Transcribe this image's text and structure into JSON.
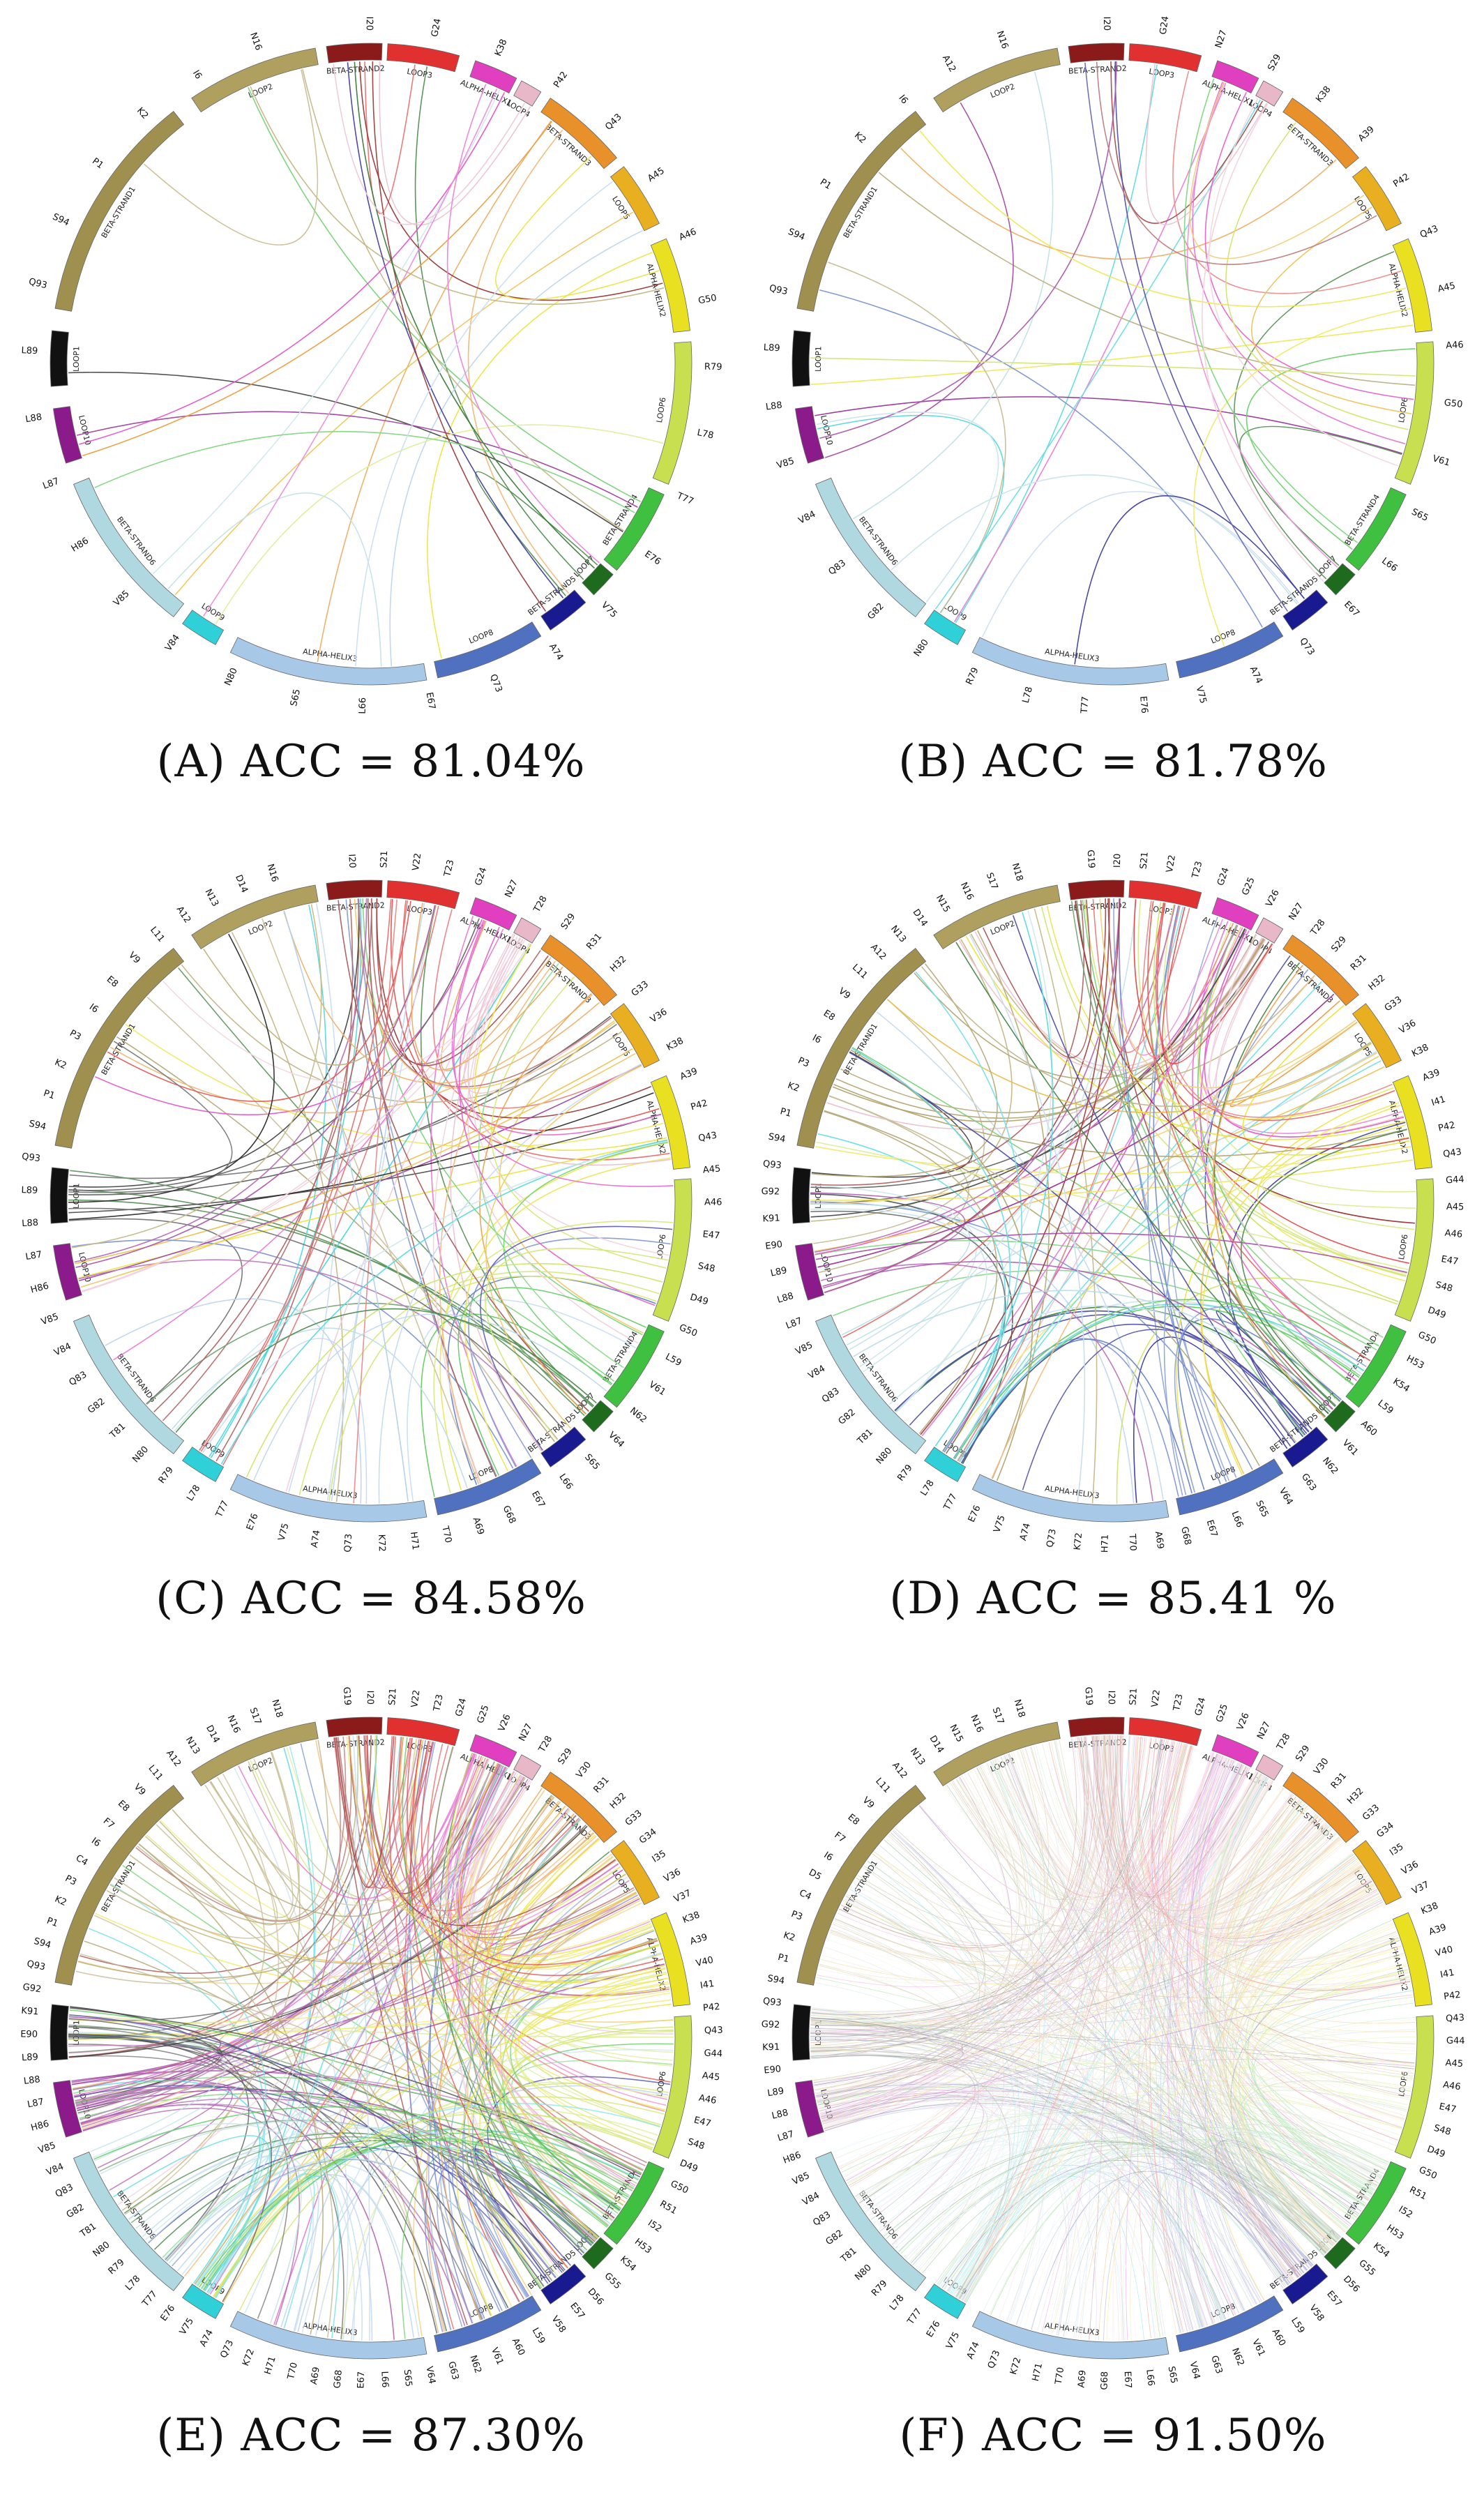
{
  "panels": [
    {
      "caption": "(A) ACC = 81.04%",
      "density": 30
    },
    {
      "caption": "(B) ACC = 81.78%",
      "density": 38
    },
    {
      "caption": "(C) ACC = 84.58%",
      "density": 110
    },
    {
      "caption": "(D) ACC = 85.41 %",
      "density": 150
    },
    {
      "caption": "(E) ACC = 87.30%",
      "density": 300
    },
    {
      "caption": "(F) ACC = 91.50%",
      "density": 700
    }
  ],
  "segments": [
    {
      "name": "BETA-STRAND2",
      "color": "#8b1a1a"
    },
    {
      "name": "LOOP3",
      "color": "#e03030"
    },
    {
      "name": "ALPHA-HELIX1",
      "color": "#e040c0"
    },
    {
      "name": "LOOP4",
      "color": "#e8b8c8"
    },
    {
      "name": "BETA-STRAND3",
      "color": "#e8902a"
    },
    {
      "name": "LOOP5",
      "color": "#e8b020"
    },
    {
      "name": "ALPHA-HELIX2",
      "color": "#e8e020"
    },
    {
      "name": "LOOP6",
      "color": "#c8e050"
    },
    {
      "name": "BETA-STRAND4",
      "color": "#40c040"
    },
    {
      "name": "LOOP7",
      "color": "#1e6b1e"
    },
    {
      "name": "BETA-STRAND5",
      "color": "#1a1a90"
    },
    {
      "name": "LOOP8",
      "color": "#5070c0"
    },
    {
      "name": "ALPHA-HELIX3",
      "color": "#a8c8e8"
    },
    {
      "name": "LOOP9",
      "color": "#30d0d8"
    },
    {
      "name": "BETA-STRAND6",
      "color": "#b0d8e0"
    },
    {
      "name": "LOOP10",
      "color": "#8b1a8b"
    },
    {
      "name": "LOOP1",
      "color": "#111111"
    },
    {
      "name": "BETA-STRAND1",
      "color": "#a09050"
    },
    {
      "name": "LOOP2",
      "color": "#b0a060"
    }
  ],
  "residue_labels": {
    "A": [
      "I20",
      "G24",
      "K38",
      "P42",
      "Q43",
      "A45",
      "A46",
      "G50",
      "R79",
      "L78",
      "T77",
      "E76",
      "V75",
      "A74",
      "Q73",
      "E67",
      "L66",
      "S65",
      "N80",
      "V84",
      "V85",
      "H86",
      "L87",
      "L88",
      "L89",
      "Q93",
      "S94",
      "P1",
      "K2",
      "I6",
      "N16"
    ],
    "B": [
      "I20",
      "G24",
      "N27",
      "S29",
      "K38",
      "A39",
      "P42",
      "Q43",
      "A45",
      "A46",
      "G50",
      "V61",
      "S65",
      "L66",
      "E67",
      "Q73",
      "A74",
      "V75",
      "E76",
      "T77",
      "L78",
      "R79",
      "N80",
      "G82",
      "Q83",
      "V84",
      "V85",
      "L88",
      "L89",
      "Q93",
      "S94",
      "P1",
      "K2",
      "I6",
      "A12",
      "N16"
    ],
    "C": [
      "I20",
      "S21",
      "V22",
      "T23",
      "G24",
      "N27",
      "T28",
      "S29",
      "R31",
      "H32",
      "G33",
      "V36",
      "K38",
      "A39",
      "P42",
      "Q43",
      "A45",
      "A46",
      "E47",
      "S48",
      "D49",
      "G50",
      "L59",
      "V61",
      "N62",
      "V64",
      "S65",
      "L66",
      "E67",
      "G68",
      "A69",
      "T70",
      "H71",
      "K72",
      "Q73",
      "A74",
      "V75",
      "E76",
      "T77",
      "L78",
      "R79",
      "N80",
      "T81",
      "G82",
      "Q83",
      "V84",
      "V85",
      "H86",
      "L87",
      "L88",
      "L89",
      "Q93",
      "S94",
      "P1",
      "K2",
      "P3",
      "I6",
      "E8",
      "V9",
      "L11",
      "A12",
      "N13",
      "D14",
      "N16"
    ],
    "D": [
      "G19",
      "I20",
      "S21",
      "V22",
      "T23",
      "G24",
      "G25",
      "V26",
      "N27",
      "T28",
      "S29",
      "R31",
      "H32",
      "G33",
      "V36",
      "K38",
      "A39",
      "I41",
      "P42",
      "Q43",
      "G44",
      "A45",
      "A46",
      "E47",
      "S48",
      "D49",
      "G50",
      "H53",
      "K54",
      "L59",
      "A60",
      "V61",
      "N62",
      "G63",
      "V64",
      "S65",
      "L66",
      "E67",
      "G68",
      "A69",
      "T70",
      "H71",
      "K72",
      "Q73",
      "A74",
      "V75",
      "E76",
      "T77",
      "L78",
      "R79",
      "N80",
      "T81",
      "G82",
      "Q83",
      "V84",
      "V85",
      "L87",
      "L88",
      "L89",
      "E90",
      "K91",
      "G92",
      "Q93",
      "S94",
      "P1",
      "K2",
      "P3",
      "I6",
      "E8",
      "V9",
      "L11",
      "A12",
      "N13",
      "D14",
      "N15",
      "N16",
      "S17",
      "N18"
    ],
    "E": [
      "G19",
      "I20",
      "S21",
      "V22",
      "T23",
      "G24",
      "G25",
      "V26",
      "N27",
      "T28",
      "S29",
      "V30",
      "R31",
      "H32",
      "G33",
      "G34",
      "I35",
      "V36",
      "V37",
      "K38",
      "A39",
      "V40",
      "I41",
      "P42",
      "Q43",
      "G44",
      "A45",
      "A46",
      "E47",
      "S48",
      "D49",
      "G50",
      "R51",
      "I52",
      "H53",
      "K54",
      "G55",
      "D56",
      "E57",
      "V58",
      "L59",
      "A60",
      "V61",
      "N62",
      "G63",
      "V64",
      "S65",
      "L66",
      "E67",
      "G68",
      "A69",
      "T70",
      "H71",
      "K72",
      "Q73",
      "A74",
      "V75",
      "E76",
      "T77",
      "L78",
      "R79",
      "N80",
      "T81",
      "G82",
      "Q83",
      "V84",
      "V85",
      "H86",
      "L87",
      "L88",
      "L89",
      "E90",
      "K91",
      "G92",
      "Q93",
      "S94",
      "P1",
      "K2",
      "P3",
      "C4",
      "I6",
      "F7",
      "E8",
      "V9",
      "L11",
      "A12",
      "N13",
      "D14",
      "N16",
      "S17",
      "N18"
    ],
    "F": [
      "G19",
      "I20",
      "S21",
      "V22",
      "T23",
      "G24",
      "G25",
      "V26",
      "N27",
      "T28",
      "S29",
      "V30",
      "R31",
      "H32",
      "G33",
      "G34",
      "I35",
      "V36",
      "V37",
      "K38",
      "A39",
      "V40",
      "I41",
      "P42",
      "Q43",
      "G44",
      "A45",
      "A46",
      "E47",
      "S48",
      "D49",
      "G50",
      "R51",
      "I52",
      "H53",
      "K54",
      "G55",
      "D56",
      "E57",
      "V58",
      "L59",
      "A60",
      "V61",
      "N62",
      "G63",
      "V64",
      "S65",
      "L66",
      "E67",
      "G68",
      "A69",
      "T70",
      "H71",
      "K72",
      "Q73",
      "A74",
      "V75",
      "E76",
      "T77",
      "L78",
      "R79",
      "N80",
      "T81",
      "G82",
      "Q83",
      "V84",
      "V85",
      "H86",
      "L87",
      "L88",
      "L89",
      "E90",
      "K91",
      "G92",
      "Q93",
      "S94",
      "P1",
      "K2",
      "P3",
      "C4",
      "D5",
      "I6",
      "F7",
      "E8",
      "V9",
      "L11",
      "A12",
      "N13",
      "D14",
      "N15",
      "N16",
      "S17",
      "N18"
    ]
  }
}
